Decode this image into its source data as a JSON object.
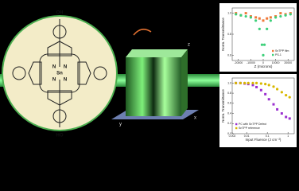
{
  "molecule": {
    "labels": [
      "OH",
      "Sn",
      "N",
      "N",
      "N",
      "N",
      "HO"
    ]
  },
  "cube": {
    "axes": [
      "x",
      "y",
      "z"
    ]
  },
  "chart_data": [
    {
      "type": "scatter",
      "ylabel": "Norm. Transmittance",
      "xlabel": "Z (microns)",
      "xlim": [
        -25000,
        25000
      ],
      "xticks": [
        -20000,
        -10000,
        0,
        10000,
        20000
      ],
      "ylim": [
        0.55,
        1.05
      ],
      "yticks": [
        {
          "value": 0.6,
          "label": "0.6"
        },
        {
          "value": 0.8,
          "label": "0.8"
        },
        {
          "value": 1,
          "label": "1.0"
        }
      ],
      "legend": "bottom-right",
      "series": [
        {
          "name": "SnTPP film",
          "color": "#f07838",
          "x": [
            -22000,
            -18000,
            -14000,
            -10000,
            -6000,
            -3000,
            0,
            3000,
            6000,
            10000,
            14000,
            18000,
            22000
          ],
          "values": [
            1,
            0.98,
            1,
            0.97,
            0.96,
            0.95,
            0.93,
            0.95,
            0.96,
            0.97,
            1,
            0.99,
            1
          ]
        },
        {
          "name": "PS-1",
          "color": "#3cd07a",
          "x": [
            -22000,
            -18000,
            -14000,
            -10000,
            -6000,
            -3000,
            -1000,
            0,
            1000,
            3000,
            6000,
            10000,
            14000,
            18000,
            22000
          ],
          "values": [
            0.99,
            0.98,
            0.97,
            0.96,
            0.93,
            0.85,
            0.7,
            0.6,
            0.7,
            0.85,
            0.93,
            0.96,
            0.97,
            0.98,
            0.99
          ]
        }
      ]
    },
    {
      "type": "scatter",
      "ylabel": "Norm. Transmittance",
      "xlabel": "Input Fluence (J cm⁻²)",
      "logx": true,
      "xlim": [
        0.002,
        2
      ],
      "xticks": [
        {
          "value": 0.002,
          "label": "0.002"
        },
        {
          "value": 0.01,
          "label": "0.01"
        },
        {
          "value": 0.1,
          "label": "0.1"
        },
        {
          "value": 1,
          "label": "1"
        }
      ],
      "ylim": [
        0,
        1.1
      ],
      "yticks": [
        {
          "value": 0,
          "label": "0.0"
        },
        {
          "value": 0.2,
          "label": "0.2"
        },
        {
          "value": 0.4,
          "label": "0.4"
        },
        {
          "value": 0.6,
          "label": "0.6"
        },
        {
          "value": 0.8,
          "label": "0.8"
        },
        {
          "value": 1,
          "label": "1.0"
        }
      ],
      "legend": "bottom-left",
      "series": [
        {
          "name": "PC with SnTPP Defect",
          "color": "#9b30d0",
          "x": [
            0.003,
            0.005,
            0.008,
            0.012,
            0.02,
            0.03,
            0.05,
            0.08,
            0.12,
            0.2,
            0.3,
            0.5,
            0.8,
            1.2
          ],
          "values": [
            1,
            1,
            0.99,
            0.98,
            0.96,
            0.92,
            0.86,
            0.78,
            0.68,
            0.58,
            0.48,
            0.4,
            0.33,
            0.3
          ]
        },
        {
          "name": "SnTPP reference",
          "color": "#d8b800",
          "x": [
            0.003,
            0.005,
            0.008,
            0.012,
            0.02,
            0.03,
            0.05,
            0.08,
            0.12,
            0.2,
            0.3,
            0.5,
            0.8,
            1.2
          ],
          "values": [
            1,
            1,
            1,
            1,
            1,
            1,
            0.99,
            0.98,
            0.96,
            0.93,
            0.88,
            0.82,
            0.76,
            0.72
          ]
        }
      ]
    }
  ]
}
